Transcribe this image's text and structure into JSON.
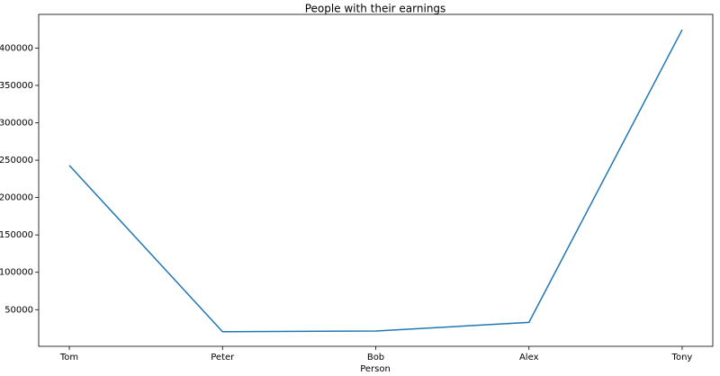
{
  "chart_data": {
    "type": "line",
    "title": "People with their earnings",
    "x_label": "Person",
    "categories": [
      "Tom",
      "Peter",
      "Bob",
      "Alex",
      "Tony"
    ],
    "values": [
      243000,
      20500,
      21500,
      33000,
      424500
    ],
    "color": "#1f77b4",
    "ylim": [
      1000,
      445000
    ],
    "yticks": [
      50000,
      100000,
      150000,
      200000,
      250000,
      300000,
      350000,
      400000
    ],
    "grid": false
  }
}
